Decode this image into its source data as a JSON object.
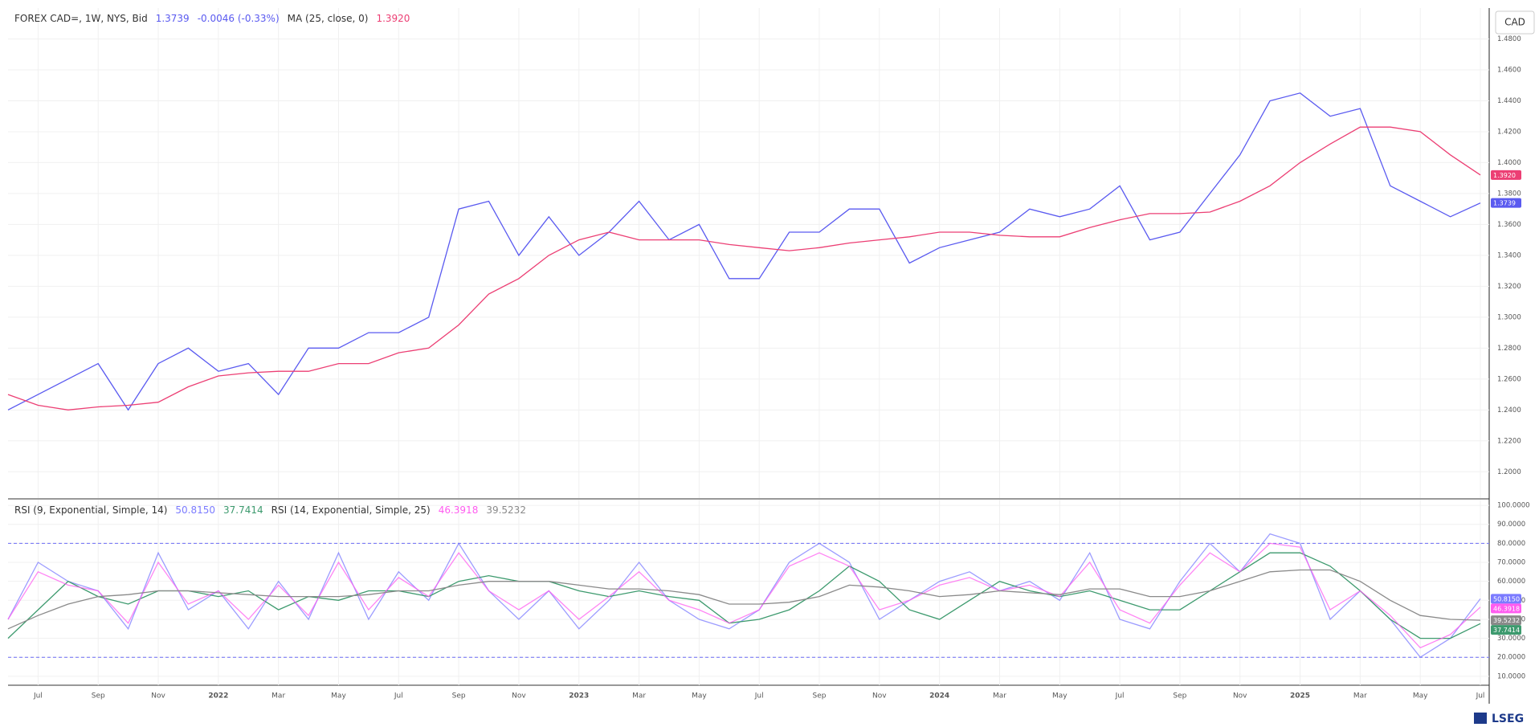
{
  "brand": "LSEG",
  "chart_data": [
    {
      "type": "line",
      "currency": "CAD",
      "grid": true,
      "categories": [
        null,
        "Jul",
        null,
        "Sep",
        null,
        "Nov",
        null,
        "2022",
        null,
        "Mar",
        null,
        "May",
        null,
        "Jul",
        null,
        "Sep",
        null,
        "Nov",
        null,
        "2023",
        null,
        "Mar",
        null,
        "May",
        null,
        "Jul",
        null,
        "Sep",
        null,
        "Nov",
        null,
        "2024",
        null,
        "Mar",
        null,
        "May",
        null,
        "Jul",
        null,
        "Sep",
        null,
        "Nov",
        null,
        "2025",
        null,
        "Mar",
        null,
        "May",
        null,
        "Jul"
      ],
      "ylim": [
        1.183,
        1.5
      ],
      "yticks": [
        {
          "value": 1.2,
          "label": "1.2000"
        },
        {
          "value": 1.22,
          "label": "1.2200"
        },
        {
          "value": 1.24,
          "label": "1.2400"
        },
        {
          "value": 1.26,
          "label": "1.2600"
        },
        {
          "value": 1.28,
          "label": "1.2800"
        },
        {
          "value": 1.3,
          "label": "1.3000"
        },
        {
          "value": 1.32,
          "label": "1.3200"
        },
        {
          "value": 1.34,
          "label": "1.3400"
        },
        {
          "value": 1.36,
          "label": "1.3600"
        },
        {
          "value": 1.38,
          "label": "1.3800"
        },
        {
          "value": 1.4,
          "label": "1.4000"
        },
        {
          "value": 1.42,
          "label": "1.4200"
        },
        {
          "value": 1.44,
          "label": "1.4400"
        },
        {
          "value": 1.46,
          "label": "1.4600"
        },
        {
          "value": 1.48,
          "label": "1.4800"
        }
      ],
      "series": [
        {
          "name": "FOREX CAD=, 1W, NYS, Bid",
          "color": "#5a5af0",
          "change": "-0.0046 (-0.33%)",
          "values": [
            1.24,
            1.25,
            1.26,
            1.27,
            1.24,
            1.27,
            1.28,
            1.265,
            1.27,
            1.25,
            1.28,
            1.28,
            1.29,
            1.29,
            1.3,
            1.37,
            1.375,
            1.34,
            1.365,
            1.34,
            1.355,
            1.375,
            1.35,
            1.36,
            1.325,
            1.325,
            1.355,
            1.355,
            1.37,
            1.37,
            1.335,
            1.345,
            1.35,
            1.355,
            1.37,
            1.365,
            1.37,
            1.385,
            1.35,
            1.355,
            1.38,
            1.405,
            1.44,
            1.445,
            1.43,
            1.435,
            1.385,
            1.375,
            1.365,
            1.3739
          ]
        },
        {
          "name": "MA (25, close, 0)",
          "color": "#ec3f74",
          "values": [
            1.25,
            1.243,
            1.24,
            1.242,
            1.243,
            1.245,
            1.255,
            1.262,
            1.264,
            1.265,
            1.265,
            1.27,
            1.27,
            1.277,
            1.28,
            1.295,
            1.315,
            1.325,
            1.34,
            1.35,
            1.355,
            1.35,
            1.35,
            1.35,
            1.347,
            1.345,
            1.343,
            1.345,
            1.348,
            1.35,
            1.352,
            1.355,
            1.355,
            1.353,
            1.352,
            1.352,
            1.358,
            1.363,
            1.367,
            1.367,
            1.368,
            1.375,
            1.385,
            1.4,
            1.412,
            1.423,
            1.423,
            1.42,
            1.405,
            1.392
          ],
          "value_labels": [
            null,
            null,
            null,
            null,
            null,
            null,
            null,
            null,
            null,
            null,
            null,
            null,
            null,
            null,
            null,
            null,
            null,
            null,
            null,
            null,
            null,
            null,
            null,
            null,
            null,
            null,
            null,
            null,
            null,
            null,
            null,
            null,
            null,
            null,
            null,
            null,
            null,
            null,
            null,
            null,
            null,
            null,
            null,
            null,
            null,
            null,
            null,
            null,
            null,
            "1.3920"
          ]
        }
      ]
    },
    {
      "type": "line",
      "grid": true,
      "categories": [
        null,
        "Jul",
        null,
        "Sep",
        null,
        "Nov",
        null,
        "2022",
        null,
        "Mar",
        null,
        "May",
        null,
        "Jul",
        null,
        "Sep",
        null,
        "Nov",
        null,
        "2023",
        null,
        "Mar",
        null,
        "May",
        null,
        "Jul",
        null,
        "Sep",
        null,
        "Nov",
        null,
        "2024",
        null,
        "Mar",
        null,
        "May",
        null,
        "Jul",
        null,
        "Sep",
        null,
        "Nov",
        null,
        "2025",
        null,
        "Mar",
        null,
        "May",
        null,
        "Jul"
      ],
      "ylim": [
        5.3,
        103
      ],
      "yticks": [
        {
          "value": 10,
          "label": "10.0000"
        },
        {
          "value": 20,
          "label": "20.0000"
        },
        {
          "value": 30,
          "label": "30.0000"
        },
        {
          "value": 40,
          "label": "40.0000"
        },
        {
          "value": 50,
          "label": "50.0000"
        },
        {
          "value": 60,
          "label": "60.0000"
        },
        {
          "value": 70,
          "label": "70.0000"
        },
        {
          "value": 80,
          "label": "80.0000"
        },
        {
          "value": 90,
          "label": "90.0000"
        },
        {
          "value": 100,
          "label": "100.0000"
        }
      ],
      "hlines": [
        80,
        20
      ],
      "hline_color": "#6b6bf5",
      "series": [
        {
          "name": "RSI (9, Exponential, Simple, 14)",
          "color": "#7b7bff",
          "values": [
            40,
            70,
            60,
            55,
            35,
            75,
            45,
            55,
            35,
            60,
            40,
            75,
            40,
            65,
            50,
            80,
            55,
            40,
            55,
            35,
            50,
            70,
            50,
            40,
            35,
            45,
            70,
            80,
            70,
            40,
            50,
            60,
            65,
            55,
            60,
            50,
            75,
            40,
            35,
            60,
            80,
            65,
            85,
            80,
            40,
            55,
            40,
            20,
            30,
            50.815
          ],
          "value_labels": [
            null,
            null,
            null,
            null,
            null,
            null,
            null,
            null,
            null,
            null,
            null,
            null,
            null,
            null,
            null,
            null,
            null,
            null,
            null,
            null,
            null,
            null,
            null,
            null,
            null,
            null,
            null,
            null,
            null,
            null,
            null,
            null,
            null,
            null,
            null,
            null,
            null,
            null,
            null,
            null,
            null,
            null,
            null,
            null,
            null,
            null,
            null,
            null,
            null,
            "50.8150"
          ]
        },
        {
          "color": "#3d9a6e",
          "values": [
            30,
            45,
            60,
            52,
            48,
            55,
            55,
            52,
            55,
            45,
            52,
            50,
            55,
            55,
            52,
            60,
            63,
            60,
            60,
            55,
            52,
            55,
            52,
            50,
            38,
            40,
            45,
            55,
            68,
            60,
            45,
            40,
            50,
            60,
            55,
            52,
            55,
            50,
            45,
            45,
            55,
            65,
            75,
            75,
            68,
            55,
            40,
            30,
            30,
            37.7414
          ]
        },
        {
          "name": "RSI (14, Exponential, Simple, 25)",
          "color": "#ff5cf0",
          "values": [
            40,
            65,
            58,
            55,
            38,
            70,
            48,
            55,
            40,
            58,
            42,
            70,
            45,
            62,
            52,
            75,
            55,
            45,
            55,
            40,
            52,
            65,
            50,
            45,
            38,
            45,
            68,
            75,
            68,
            45,
            50,
            58,
            62,
            55,
            58,
            52,
            70,
            45,
            38,
            58,
            75,
            65,
            80,
            78,
            45,
            55,
            42,
            25,
            32,
            46.3918
          ]
        },
        {
          "color": "#8a8a8a",
          "values": [
            35,
            42,
            48,
            52,
            53,
            55,
            55,
            54,
            53,
            52,
            52,
            52,
            53,
            55,
            55,
            58,
            60,
            60,
            60,
            58,
            56,
            56,
            55,
            53,
            48,
            48,
            49,
            52,
            58,
            57,
            55,
            52,
            53,
            55,
            54,
            53,
            56,
            56,
            52,
            52,
            55,
            60,
            65,
            66,
            66,
            60,
            50,
            42,
            40,
            39.5232
          ]
        }
      ]
    }
  ]
}
